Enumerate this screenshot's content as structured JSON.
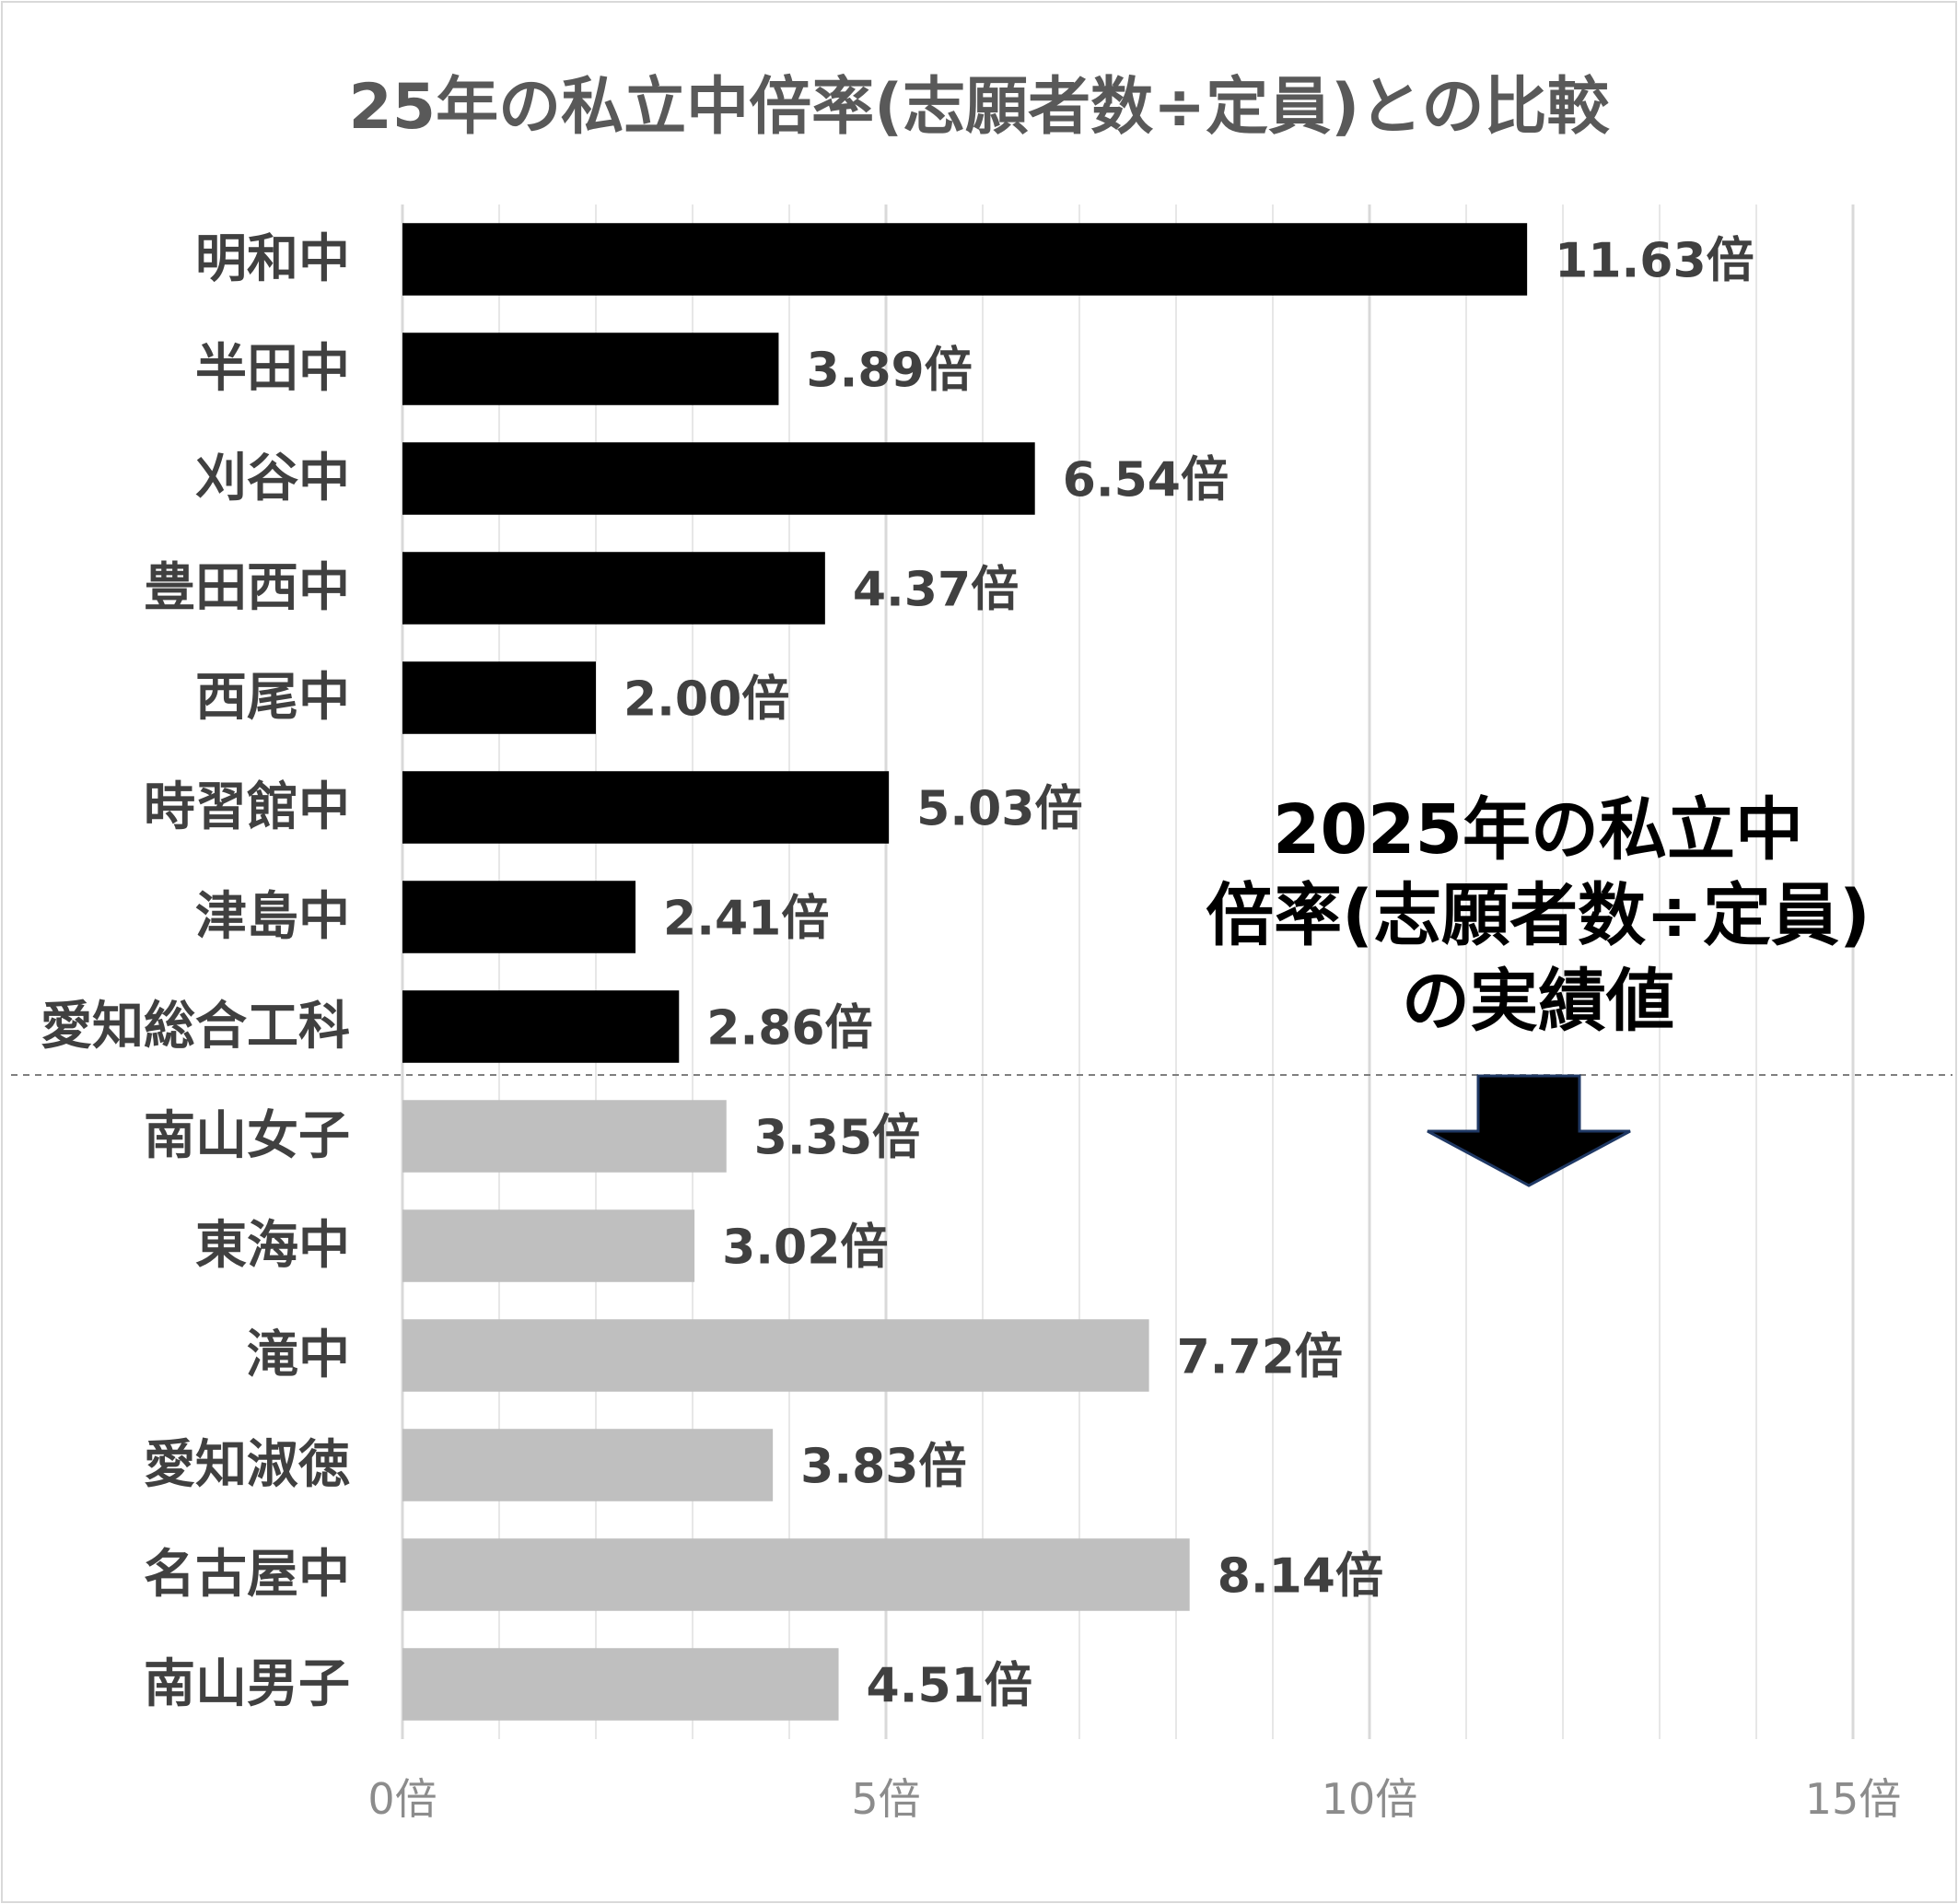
{
  "chart_data": {
    "type": "bar",
    "orientation": "horizontal",
    "title": "25年の私立中倍率(志願者数÷定員)との比較",
    "categories": [
      "明和中",
      "半田中",
      "刈谷中",
      "豊田西中",
      "西尾中",
      "時習館中",
      "津島中",
      "愛知総合工科",
      "南山女子",
      "東海中",
      "滝中",
      "愛知淑徳",
      "名古屋中",
      "南山男子"
    ],
    "values": [
      11.63,
      3.89,
      6.54,
      4.37,
      2.0,
      5.03,
      2.41,
      2.86,
      3.35,
      3.02,
      7.72,
      3.83,
      8.14,
      4.51
    ],
    "value_labels": [
      "11.63倍",
      "3.89倍",
      "6.54倍",
      "4.37倍",
      "2.00倍",
      "5.03倍",
      "2.41倍",
      "2.86倍",
      "3.35倍",
      "3.02倍",
      "7.72倍",
      "3.83倍",
      "8.14倍",
      "4.51倍"
    ],
    "bar_colors": [
      "#000000",
      "#000000",
      "#000000",
      "#000000",
      "#000000",
      "#000000",
      "#000000",
      "#000000",
      "#bfbfbf",
      "#bfbfbf",
      "#bfbfbf",
      "#bfbfbf",
      "#bfbfbf",
      "#bfbfbf"
    ],
    "group_split_after": 8,
    "xlim": [
      0,
      15
    ],
    "xticks": [
      0,
      5,
      10,
      15
    ],
    "xtick_labels": [
      "0倍",
      "5倍",
      "10倍",
      "15倍"
    ],
    "minor_grid_step": 1,
    "grid": true,
    "annotation": {
      "lines": [
        "2025年の私立中",
        "倍率(志願者数÷定員)",
        "の実績値"
      ],
      "arrow": "down-arrow-icon"
    }
  }
}
